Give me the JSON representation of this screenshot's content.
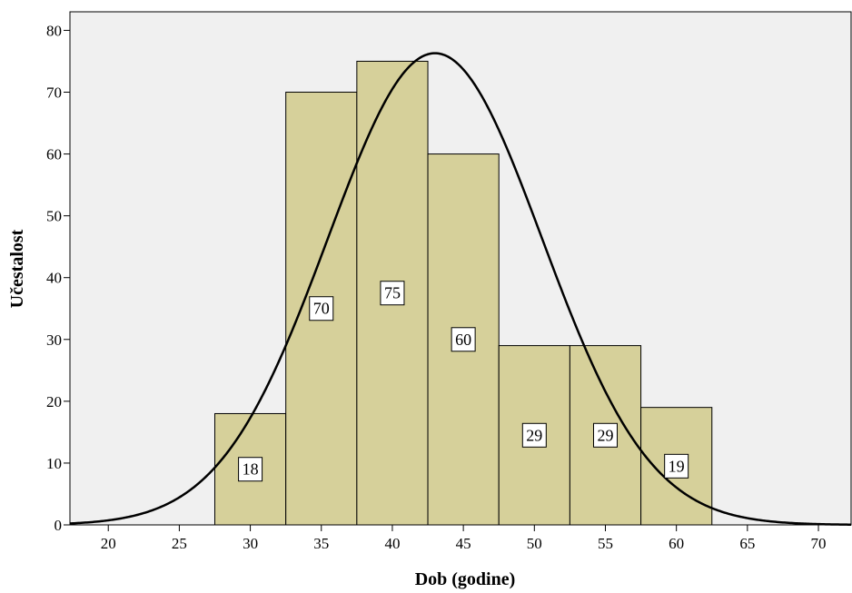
{
  "chart_data": {
    "type": "bar",
    "subtype": "histogram",
    "xlabel": "Dob (godine)",
    "ylabel": "Učestalost",
    "xlim": [
      17.3,
      72.3
    ],
    "ylim": [
      0,
      83
    ],
    "x_ticks": [
      20,
      25,
      30,
      35,
      40,
      45,
      50,
      55,
      60,
      65,
      70
    ],
    "y_ticks": [
      0,
      10,
      20,
      30,
      40,
      50,
      60,
      70,
      80
    ],
    "bins": [
      {
        "start": 27.5,
        "end": 32.5,
        "value": 18,
        "label": "18"
      },
      {
        "start": 32.5,
        "end": 37.5,
        "value": 70,
        "label": "70"
      },
      {
        "start": 37.5,
        "end": 42.5,
        "value": 75,
        "label": "75"
      },
      {
        "start": 42.5,
        "end": 47.5,
        "value": 60,
        "label": "60"
      },
      {
        "start": 47.5,
        "end": 52.5,
        "value": 29,
        "label": "29"
      },
      {
        "start": 52.5,
        "end": 57.5,
        "value": 29,
        "label": "29"
      },
      {
        "start": 57.5,
        "end": 62.5,
        "value": 19,
        "label": "19"
      }
    ],
    "normal_curve": {
      "mean": 43.0,
      "peak": 76.3,
      "sd": 7.55
    },
    "grid": false,
    "colors": {
      "plot_background": "#f0f0f0",
      "bar_fill": "#d6d09a",
      "bar_stroke": "#000000",
      "curve": "#000000"
    }
  }
}
